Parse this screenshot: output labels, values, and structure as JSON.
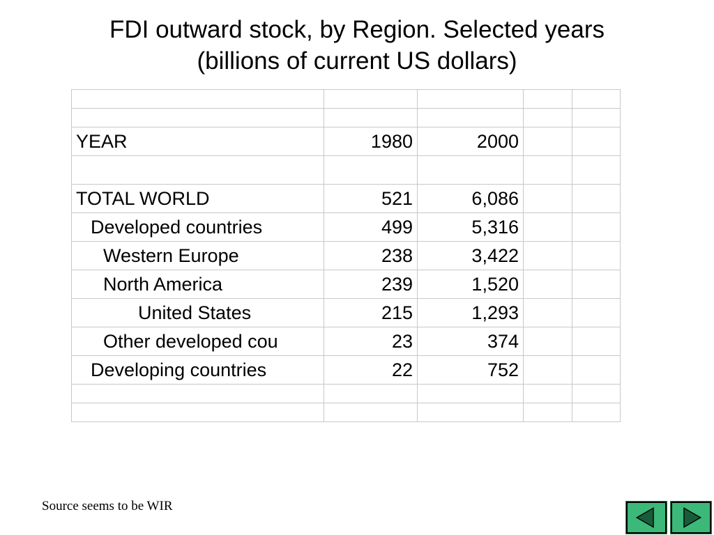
{
  "slide": {
    "title_line1": "FDI outward stock, by Region. Selected years",
    "title_line2": "(billions of current US dollars)"
  },
  "table": {
    "header": {
      "label": "YEAR",
      "y1980": "1980",
      "y2000": "2000"
    },
    "rows": [
      {
        "label": "TOTAL WORLD",
        "y1980": "521",
        "y2000": "6,086"
      },
      {
        "label": "Developed countries",
        "y1980": "499",
        "y2000": "5,316"
      },
      {
        "label": "Western Europe",
        "y1980": "238",
        "y2000": "3,422"
      },
      {
        "label": "North America",
        "y1980": "239",
        "y2000": "1,520"
      },
      {
        "label": "United States",
        "y1980": "215",
        "y2000": "1,293"
      },
      {
        "label": "Other developed cou",
        "y1980": "23",
        "y2000": "374"
      },
      {
        "label": "Developing countries",
        "y1980": "22",
        "y2000": "752"
      }
    ]
  },
  "footer": {
    "source_note": "Source seems to be WIR"
  },
  "navigation": {
    "prev_icon": "triangle-left-icon",
    "next_icon": "triangle-right-icon",
    "button_color": "#3cb878"
  }
}
